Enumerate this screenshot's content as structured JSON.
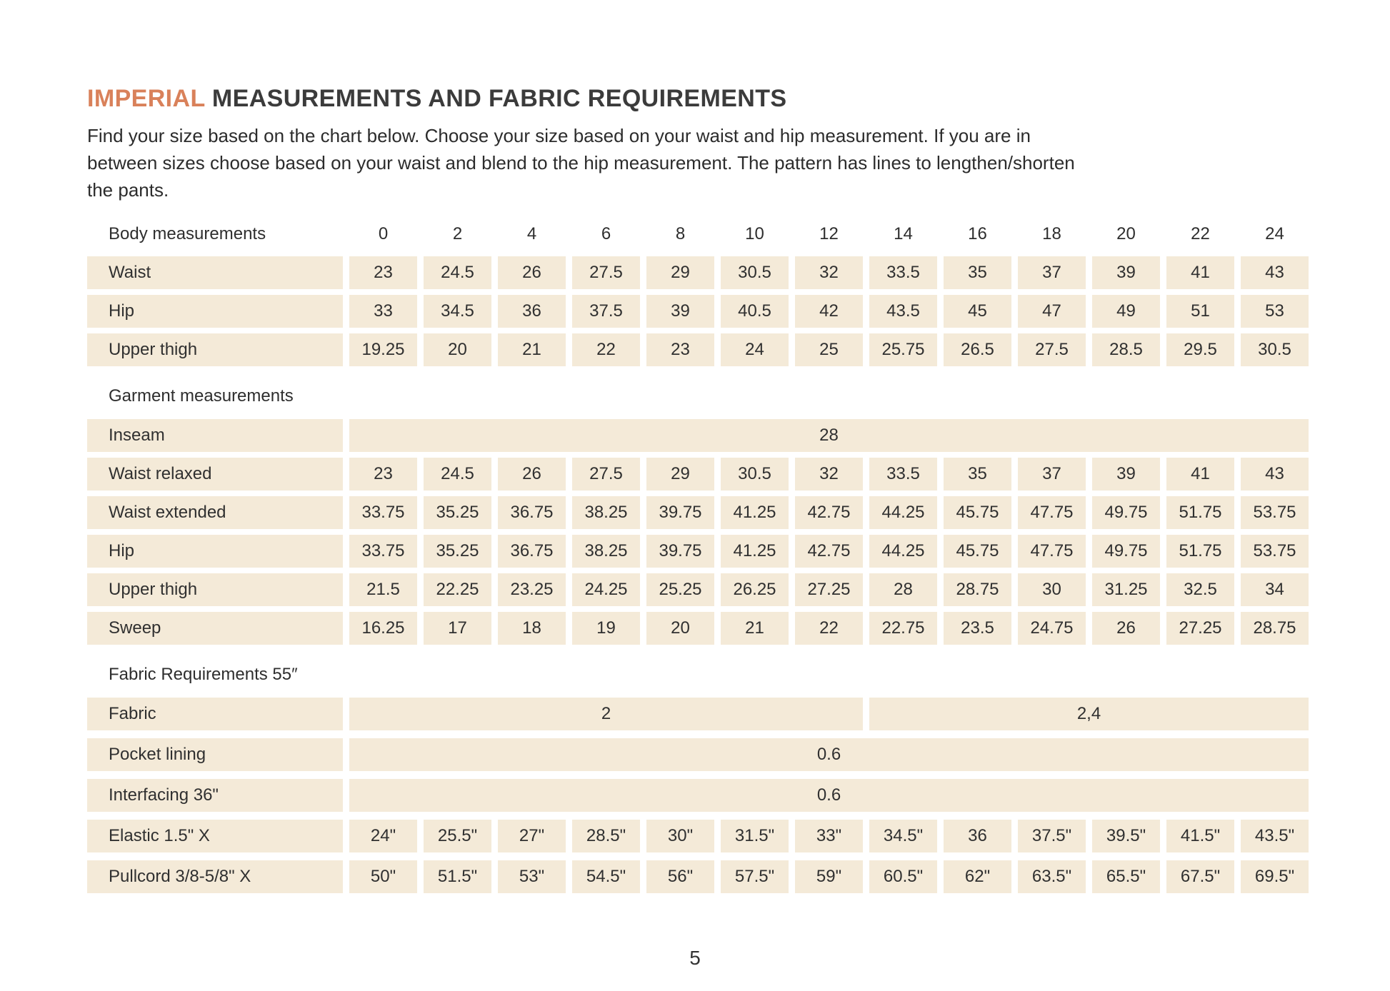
{
  "page": {
    "title_highlight": "IMPERIAL",
    "title_rest": " MEASUREMENTS AND FABRIC REQUIREMENTS",
    "intro_lines": [
      "Find your size based on the chart below. Choose your size based on your waist and hip measurement. If you are in",
      "between sizes choose based on your waist and blend to the hip measurement. The pattern has lines to lengthen/shorten",
      "the pants."
    ],
    "page_number": "5"
  },
  "colors": {
    "accent": "#D9815A",
    "cell_bg": "#F4EAD8",
    "text": "#303030"
  },
  "table": {
    "header": {
      "label": "Body measurements",
      "sizes": [
        "0",
        "2",
        "4",
        "6",
        "8",
        "10",
        "12",
        "14",
        "16",
        "18",
        "20",
        "22",
        "24"
      ]
    },
    "rows": [
      {
        "type": "data",
        "label": "Waist",
        "values": [
          "23",
          "24.5",
          "26",
          "27.5",
          "29",
          "30.5",
          "32",
          "33.5",
          "35",
          "37",
          "39",
          "41",
          "43"
        ]
      },
      {
        "type": "data",
        "label": "Hip",
        "values": [
          "33",
          "34.5",
          "36",
          "37.5",
          "39",
          "40.5",
          "42",
          "43.5",
          "45",
          "47",
          "49",
          "51",
          "53"
        ]
      },
      {
        "type": "data",
        "label": "Upper thigh",
        "values": [
          "19.25",
          "20",
          "21",
          "22",
          "23",
          "24",
          "25",
          "25.75",
          "26.5",
          "27.5",
          "28.5",
          "29.5",
          "30.5"
        ]
      },
      {
        "type": "section",
        "label": "Garment measurements"
      },
      {
        "type": "span",
        "label": "Inseam",
        "spans": [
          {
            "text": "28",
            "cols": 13
          }
        ]
      },
      {
        "type": "data",
        "label": "Waist relaxed",
        "values": [
          "23",
          "24.5",
          "26",
          "27.5",
          "29",
          "30.5",
          "32",
          "33.5",
          "35",
          "37",
          "39",
          "41",
          "43"
        ]
      },
      {
        "type": "data",
        "label": "Waist extended",
        "values": [
          "33.75",
          "35.25",
          "36.75",
          "38.25",
          "39.75",
          "41.25",
          "42.75",
          "44.25",
          "45.75",
          "47.75",
          "49.75",
          "51.75",
          "53.75"
        ]
      },
      {
        "type": "data",
        "label": "Hip",
        "values": [
          "33.75",
          "35.25",
          "36.75",
          "38.25",
          "39.75",
          "41.25",
          "42.75",
          "44.25",
          "45.75",
          "47.75",
          "49.75",
          "51.75",
          "53.75"
        ]
      },
      {
        "type": "data",
        "label": "Upper thigh",
        "values": [
          "21.5",
          "22.25",
          "23.25",
          "24.25",
          "25.25",
          "26.25",
          "27.25",
          "28",
          "28.75",
          "30",
          "31.25",
          "32.5",
          "34"
        ]
      },
      {
        "type": "data",
        "label": "Sweep",
        "values": [
          "16.25",
          "17",
          "18",
          "19",
          "20",
          "21",
          "22",
          "22.75",
          "23.5",
          "24.75",
          "26",
          "27.25",
          "28.75"
        ]
      },
      {
        "type": "section",
        "label": "Fabric Requirements 55″"
      },
      {
        "type": "span",
        "label": "Fabric",
        "spans": [
          {
            "text": "2",
            "cols": 7
          },
          {
            "text": "2,4",
            "cols": 6
          }
        ]
      },
      {
        "type": "span",
        "label": "Pocket lining",
        "spans": [
          {
            "text": "0.6",
            "cols": 13
          }
        ]
      },
      {
        "type": "span",
        "label": "Interfacing 36\"",
        "spans": [
          {
            "text": "0.6",
            "cols": 13
          }
        ]
      },
      {
        "type": "data",
        "label": "Elastic  1.5\" X",
        "values": [
          "24\"",
          "25.5\"",
          "27\"",
          "28.5\"",
          "30\"",
          "31.5\"",
          "33\"",
          "34.5\"",
          "36",
          "37.5\"",
          "39.5\"",
          "41.5\"",
          "43.5\""
        ]
      },
      {
        "type": "data",
        "label": "Pullcord 3/8-5/8\" X",
        "values": [
          "50\"",
          "51.5\"",
          "53\"",
          "54.5\"",
          "56\"",
          "57.5\"",
          "59\"",
          "60.5\"",
          "62\"",
          "63.5\"",
          "65.5\"",
          "67.5\"",
          "69.5\""
        ]
      }
    ]
  }
}
